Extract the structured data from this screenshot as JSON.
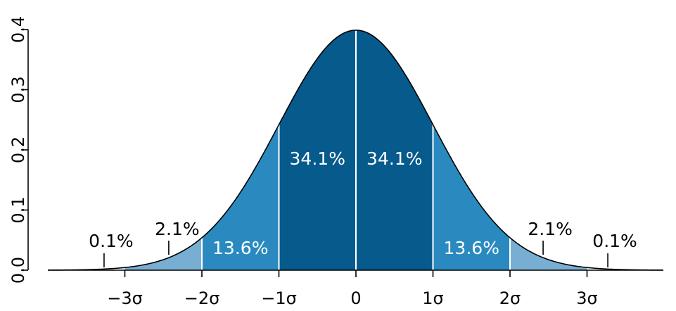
{
  "chart_data": {
    "type": "area",
    "title": "",
    "xlabel": "",
    "ylabel": "",
    "xlim": [
      -4,
      4
    ],
    "ylim": [
      0,
      0.4
    ],
    "grid": false,
    "legend": "none",
    "curve": "normal density, mean 0, sd 1",
    "x_ticks": [
      {
        "value": -3,
        "label": "−3σ"
      },
      {
        "value": -2,
        "label": "−2σ"
      },
      {
        "value": -1,
        "label": "−1σ"
      },
      {
        "value": 0,
        "label": "0"
      },
      {
        "value": 1,
        "label": "1σ"
      },
      {
        "value": 2,
        "label": "2σ"
      },
      {
        "value": 3,
        "label": "3σ"
      }
    ],
    "y_ticks": [
      {
        "value": 0.0,
        "label": "0.0"
      },
      {
        "value": 0.1,
        "label": "0.1"
      },
      {
        "value": 0.2,
        "label": "0.2"
      },
      {
        "value": 0.3,
        "label": "0.3"
      },
      {
        "value": 0.4,
        "label": "0.4"
      }
    ],
    "regions": [
      {
        "from": -3,
        "to": -2,
        "label": "2.1%",
        "value": 2.1,
        "color": "#79aed3"
      },
      {
        "from": -2,
        "to": -1,
        "label": "13.6%",
        "value": 13.6,
        "color": "#2a8ac0"
      },
      {
        "from": -1,
        "to": 0,
        "label": "34.1%",
        "value": 34.1,
        "color": "#075a8c"
      },
      {
        "from": 0,
        "to": 1,
        "label": "34.1%",
        "value": 34.1,
        "color": "#075a8c"
      },
      {
        "from": 1,
        "to": 2,
        "label": "13.6%",
        "value": 13.6,
        "color": "#2a8ac0"
      },
      {
        "from": 2,
        "to": 3,
        "label": "2.1%",
        "value": 2.1,
        "color": "#79aed3"
      }
    ],
    "outer_tails": [
      {
        "side": "left",
        "label": "0.1%",
        "value": 0.1
      },
      {
        "side": "right",
        "label": "0.1%",
        "value": 0.1
      }
    ],
    "divider_color": "#ffffff",
    "curve_color": "#000000"
  }
}
